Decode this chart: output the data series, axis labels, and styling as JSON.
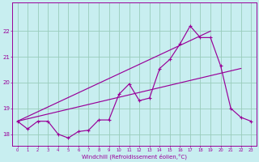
{
  "xlabel": "Windchill (Refroidissement éolien,°C)",
  "bg_color": "#c8eef0",
  "grid_color": "#99ccbb",
  "line_color": "#990099",
  "x_ticks": [
    0,
    1,
    2,
    3,
    4,
    5,
    6,
    7,
    8,
    9,
    10,
    11,
    12,
    13,
    14,
    15,
    16,
    17,
    18,
    19,
    20,
    21,
    22,
    23
  ],
  "y_ticks": [
    18,
    19,
    20,
    21,
    22
  ],
  "ylim": [
    17.55,
    23.1
  ],
  "xlim": [
    -0.5,
    23.5
  ],
  "series1_x": [
    0,
    1,
    2,
    3,
    4,
    5,
    6,
    7,
    8,
    9,
    10,
    11,
    12,
    13,
    14,
    15,
    16,
    17,
    18,
    19,
    20,
    21,
    22,
    23
  ],
  "series1_y": [
    18.5,
    18.2,
    18.5,
    18.5,
    18.0,
    17.85,
    18.1,
    18.15,
    18.55,
    18.55,
    19.55,
    19.95,
    19.3,
    19.4,
    20.55,
    20.9,
    21.5,
    22.2,
    21.75,
    21.75,
    20.65,
    19.0,
    18.65,
    18.5
  ],
  "series2_x": [
    0,
    22
  ],
  "series2_y": [
    18.5,
    20.55
  ],
  "series3_x": [
    0,
    19
  ],
  "series3_y": [
    18.5,
    22.0
  ]
}
